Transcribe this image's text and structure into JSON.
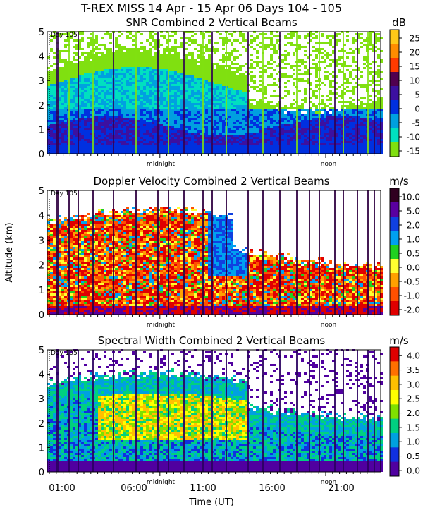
{
  "header": {
    "line1": "T-REX MISS   14 Apr - 15 Apr 06 Days 104 - 105"
  },
  "chart_data": [
    {
      "type": "heatmap",
      "title": "SNR Combined 2 Vertical Beams",
      "units": "dB",
      "day_label": "Day 105",
      "ylabel": "",
      "ylim": [
        0,
        5
      ],
      "yticks": [
        "0",
        "1",
        "2",
        "3",
        "4",
        "5"
      ],
      "xmarks": [
        "midnight",
        "noon"
      ],
      "colorbar": {
        "labels": [
          "25",
          "20",
          "15",
          "10",
          "5",
          "0",
          "-5",
          "-10",
          "-15"
        ],
        "colors": [
          "#ffc818",
          "#ff8c00",
          "#ff3a00",
          "#500050",
          "#3c10a0",
          "#0030e0",
          "#00a0e0",
          "#00e0c0",
          "#80e010"
        ]
      }
    },
    {
      "type": "heatmap",
      "title": "Doppler Velocity Combined 2 Vertical Beams",
      "units": "m/s",
      "day_label": "Day 105",
      "ylabel": "Altitude (km)",
      "ylim": [
        0,
        5
      ],
      "yticks": [
        "0",
        "1",
        "2",
        "3",
        "4",
        "5"
      ],
      "xmarks": [
        "midnight",
        "noon"
      ],
      "colorbar": {
        "labels": [
          "10.0",
          "5.0",
          "2.0",
          "1.0",
          "0.5",
          "0.0",
          "-0.5",
          "-1.0",
          "-2.0"
        ],
        "colors": [
          "#300020",
          "#5a00a0",
          "#1040e0",
          "#00a0f0",
          "#20d020",
          "#ffff30",
          "#ffa000",
          "#ff5000",
          "#e00000"
        ]
      }
    },
    {
      "type": "heatmap",
      "title": "Spectral Width Combined 2 Vertical Beams",
      "units": "m/s",
      "day_label": "Day 105",
      "ylabel": "",
      "ylim": [
        0,
        5
      ],
      "yticks": [
        "0",
        "1",
        "2",
        "3",
        "4",
        "5"
      ],
      "xmarks": [
        "midnight",
        "noon"
      ],
      "xticks": [
        "01:00",
        "06:00",
        "11:00",
        "16:00",
        "21:00"
      ],
      "xlabel": "Time (UT)",
      "colorbar": {
        "labels": [
          "4.0",
          "3.5",
          "3.0",
          "2.5",
          "2.0",
          "1.5",
          "1.0",
          "0.5",
          "0.0"
        ],
        "colors": [
          "#e00000",
          "#ff7000",
          "#ffc000",
          "#ffff00",
          "#80e000",
          "#00d080",
          "#00a0e0",
          "#1030e0",
          "#5000a0"
        ]
      }
    }
  ]
}
